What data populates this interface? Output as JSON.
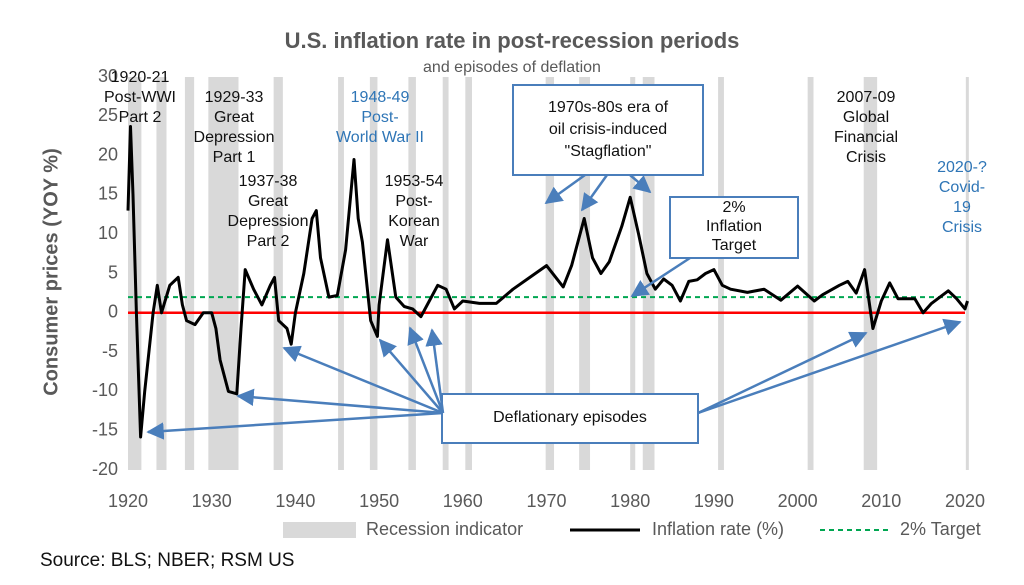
{
  "chart_data": {
    "type": "line",
    "title": "U.S. inflation rate in post-recession periods",
    "subtitle": "and episodes of deflation",
    "y_label": "Consumer prices (YOY %)",
    "source": "Source: BLS; NBER; RSM US",
    "xlim": [
      1920,
      2020
    ],
    "xticks": [
      1920,
      1930,
      1940,
      1950,
      1960,
      1970,
      1980,
      1990,
      2000,
      2010,
      2020
    ],
    "ylim": [
      -20,
      30
    ],
    "yticks": [
      -20,
      -15,
      -10,
      -5,
      0,
      5,
      10,
      15,
      20,
      25,
      30
    ],
    "x": [
      1920,
      1920.3,
      1920.6,
      1921,
      1921.5,
      1922,
      1922.5,
      1923,
      1923.5,
      1924,
      1925,
      1926,
      1926.5,
      1927,
      1928,
      1929,
      1930,
      1930.5,
      1931,
      1932,
      1933,
      1933.5,
      1934,
      1935,
      1936,
      1937,
      1937.5,
      1938,
      1939,
      1939.5,
      1940,
      1941,
      1942,
      1942.5,
      1943,
      1944,
      1945,
      1946,
      1947,
      1947.5,
      1948,
      1949,
      1949.8,
      1950,
      1951,
      1952,
      1953,
      1954,
      1955,
      1956,
      1957,
      1958,
      1959,
      1960,
      1962,
      1964,
      1966,
      1968,
      1970,
      1972,
      1973,
      1974.5,
      1975.5,
      1976.5,
      1977.5,
      1979,
      1980,
      1981,
      1982,
      1983,
      1984,
      1985,
      1986,
      1987,
      1988,
      1989,
      1990,
      1991,
      1992,
      1994,
      1996,
      1998,
      2000,
      2002,
      2003,
      2005,
      2006,
      2007,
      2008,
      2009,
      2010,
      2011,
      2012,
      2014,
      2015,
      2016,
      2018,
      2019,
      2020,
      2020.3
    ],
    "series": [
      {
        "name": "Inflation rate (%)",
        "color": "#000000",
        "values": [
          13,
          23.7,
          15,
          0,
          -15.8,
          -10,
          -5,
          0,
          3.5,
          0,
          3.5,
          4.5,
          1,
          -1,
          -1.5,
          0,
          0,
          -2,
          -6,
          -10,
          -10.3,
          -2,
          5.5,
          3,
          1,
          3.5,
          4.5,
          -1,
          -2,
          -4,
          0,
          5,
          12,
          13,
          7,
          2,
          2.2,
          8,
          19.5,
          12,
          9,
          -1,
          -3,
          1,
          9.3,
          2,
          0.8,
          0.5,
          -0.5,
          1.5,
          3.5,
          3,
          0.5,
          1.5,
          1.2,
          1.2,
          3,
          4.5,
          6,
          3.3,
          6,
          12,
          7,
          5,
          6.5,
          11,
          14.7,
          10,
          5,
          3,
          4.3,
          3.5,
          1.5,
          4,
          4.2,
          5,
          5.5,
          3.5,
          3,
          2.6,
          3,
          1.6,
          3.4,
          1.5,
          2.3,
          3.5,
          4,
          2.5,
          5.5,
          -2,
          1.5,
          3.8,
          1.8,
          1.8,
          0,
          1.2,
          2.8,
          1.8,
          0.5,
          1.5
        ]
      }
    ],
    "recession_indicator": {
      "name": "Recession indicator",
      "color": "#d9d9d9",
      "periods": [
        [
          1920,
          1921.6
        ],
        [
          1923.4,
          1924.6
        ],
        [
          1926.8,
          1927.9
        ],
        [
          1929.6,
          1933.2
        ],
        [
          1937.4,
          1938.5
        ],
        [
          1945.1,
          1945.8
        ],
        [
          1948.9,
          1949.8
        ],
        [
          1953.5,
          1954.4
        ],
        [
          1957.6,
          1958.3
        ],
        [
          1960.3,
          1961.1
        ],
        [
          1969.9,
          1970.9
        ],
        [
          1973.9,
          1975.2
        ],
        [
          1980,
          1980.6
        ],
        [
          1981.5,
          1982.9
        ],
        [
          1990.5,
          1991.2
        ],
        [
          2001.2,
          2001.9
        ],
        [
          2007.9,
          2009.5
        ],
        [
          2020.1,
          2020.4
        ]
      ]
    },
    "target": {
      "name": "2% Target",
      "value": 2,
      "color": "#00a651"
    },
    "zero_line": {
      "value": 0,
      "color": "#ff0000"
    },
    "annotations": [
      {
        "lines": [
          "1920-21",
          "Post-WWI",
          "Part 2"
        ],
        "color": "#111111"
      },
      {
        "lines": [
          "1929-33",
          "Great",
          "Depression",
          "Part 1"
        ],
        "color": "#111111"
      },
      {
        "lines": [
          "1937-38",
          "Great",
          "Depression",
          "Part 2"
        ],
        "color": "#111111"
      },
      {
        "lines": [
          "1948-49",
          "Post-",
          "World War II"
        ],
        "color": "#2e75b6"
      },
      {
        "lines": [
          "1953-54",
          "Post-",
          "Korean",
          "War"
        ],
        "color": "#111111"
      },
      {
        "lines": [
          "2007-09",
          "Global",
          "Financial",
          "Crisis"
        ],
        "color": "#111111"
      },
      {
        "lines": [
          "2020-?",
          "Covid-",
          "19",
          "Crisis"
        ],
        "color": "#2e75b6"
      }
    ],
    "boxes": [
      {
        "lines": [
          "1970s-80s era of",
          "oil crisis-induced",
          "\"Stagflation\""
        ]
      },
      {
        "lines": [
          "2%",
          "Inflation",
          "Target"
        ]
      },
      {
        "lines": [
          "Deflationary episodes"
        ]
      }
    ]
  }
}
